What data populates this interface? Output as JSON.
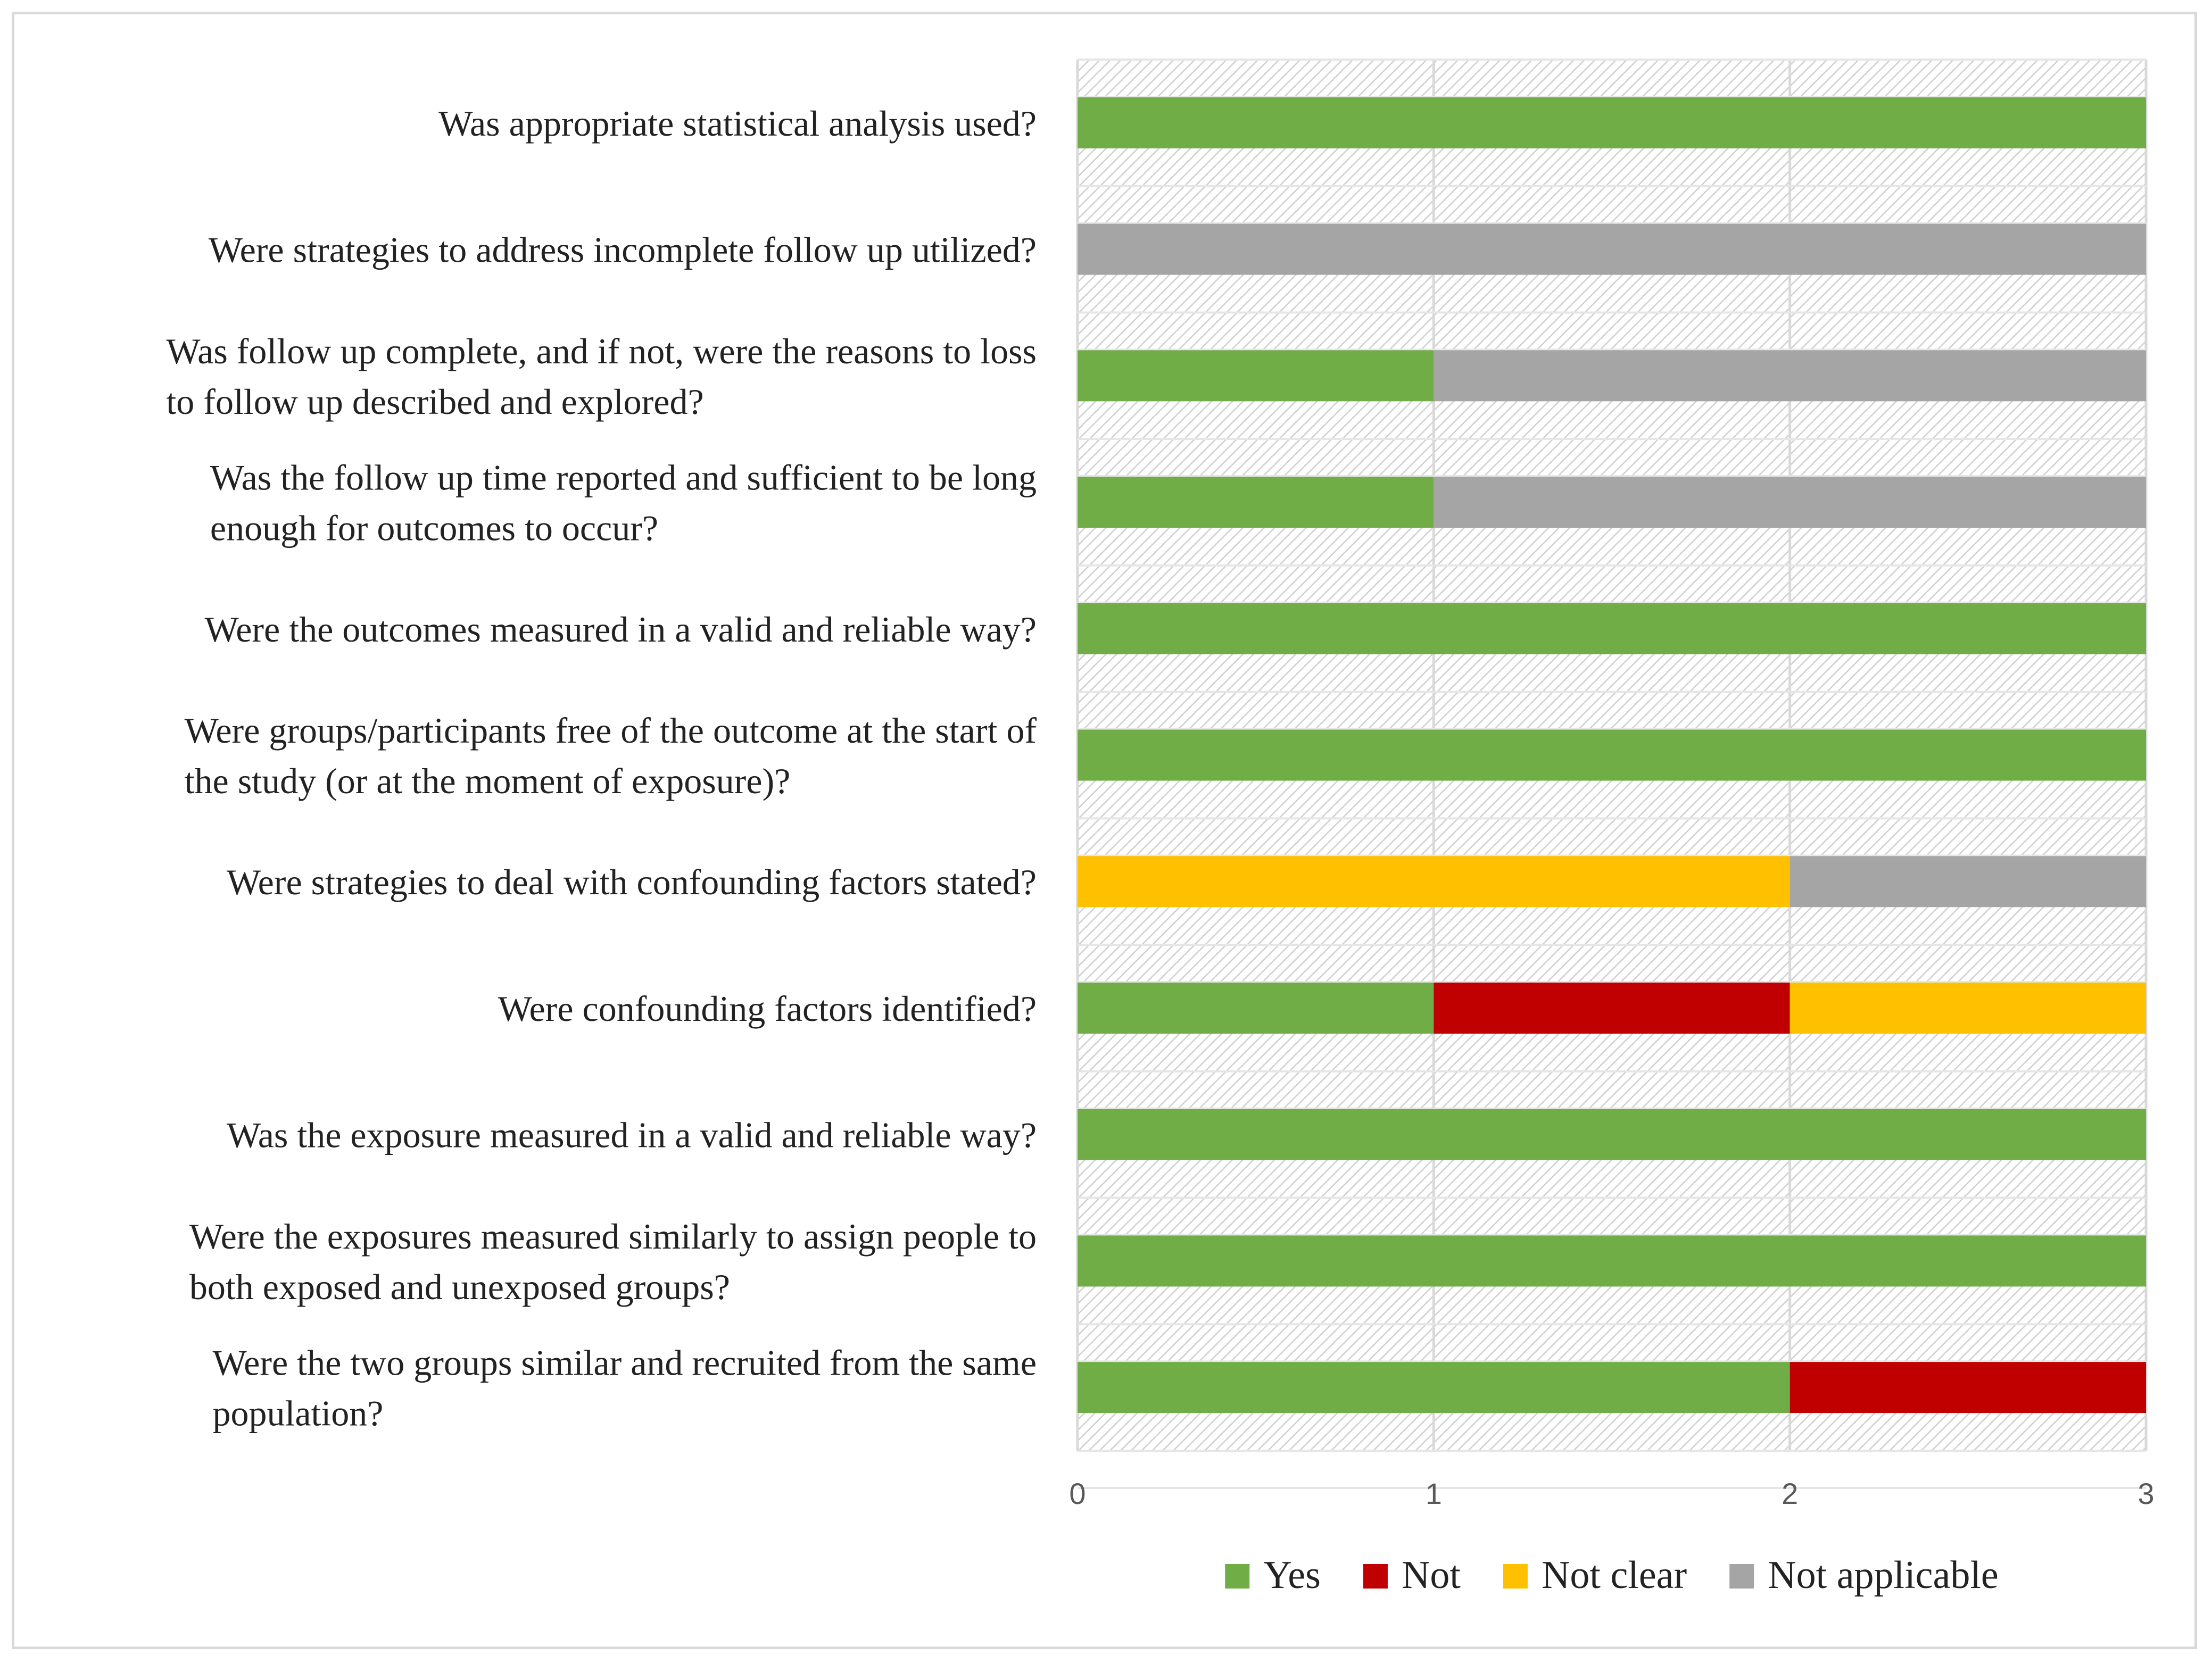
{
  "chart_data": {
    "type": "bar",
    "orientation": "horizontal",
    "stacked": true,
    "title": "",
    "xlabel": "",
    "ylabel": "",
    "xlim": [
      0,
      3
    ],
    "x_ticks": [
      "0",
      "1",
      "2",
      "3"
    ],
    "grid": true,
    "legend_position": "bottom",
    "categories": [
      [
        "Was appropriate statistical analysis used?"
      ],
      [
        "Were strategies to address incomplete follow up utilized?"
      ],
      [
        "Was follow up complete, and if not, were the reasons to loss",
        "to follow up described and explored?"
      ],
      [
        "Was the follow up time reported and sufficient to be long",
        "enough for outcomes to occur?"
      ],
      [
        "Were the outcomes measured in a valid and reliable way?"
      ],
      [
        "Were groups/participants free of the outcome at the start of",
        "the study (or at the moment of exposure)?"
      ],
      [
        "Were strategies to deal with confounding factors stated?"
      ],
      [
        "Were confounding factors identified?"
      ],
      [
        "Was the exposure measured in a valid and reliable way?"
      ],
      [
        "Were the exposures measured similarly to assign people to",
        "both exposed and unexposed groups?"
      ],
      [
        "Were the two groups similar and recruited from the same",
        "population?"
      ]
    ],
    "series": [
      {
        "name": "Yes",
        "color": "#70ad47",
        "values": [
          3,
          0,
          1,
          1,
          3,
          3,
          0,
          1,
          3,
          3,
          2
        ]
      },
      {
        "name": "Not",
        "color": "#c00000",
        "values": [
          0,
          0,
          0,
          0,
          0,
          0,
          0,
          1,
          0,
          0,
          1
        ]
      },
      {
        "name": "Not clear",
        "color": "#ffc000",
        "values": [
          0,
          0,
          0,
          0,
          0,
          0,
          2,
          1,
          0,
          0,
          0
        ]
      },
      {
        "name": "Not applicable",
        "color": "#a5a5a5",
        "values": [
          0,
          3,
          2,
          2,
          0,
          0,
          1,
          0,
          0,
          0,
          0
        ]
      }
    ]
  }
}
